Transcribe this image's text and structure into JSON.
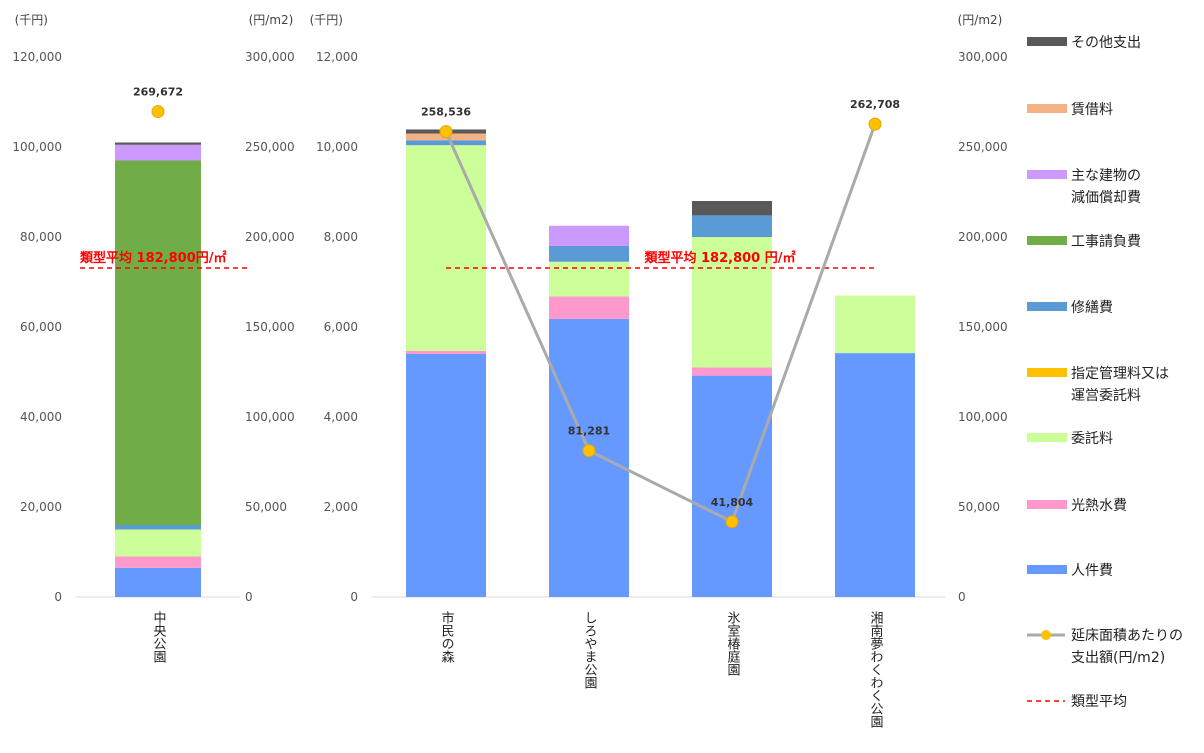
{
  "colors": {
    "sonota": "#595959",
    "chinshaku": "#f4b183",
    "genka": "#cc99ff",
    "kouji": "#70ad47",
    "shuzen": "#5b9bd5",
    "shitei": "#ffc000",
    "itaku": "#ccff99",
    "kounetsu": "#ff99cc",
    "jinken": "#6699ff",
    "line": "#aaaaaa",
    "marker": "#ffc000",
    "average": "#ff0000"
  },
  "legend": {
    "sonota": [
      "その他支出"
    ],
    "chinshaku": [
      "賃借料"
    ],
    "genka": [
      "主な建物の",
      "減価償却費"
    ],
    "kouji": [
      "工事請負費"
    ],
    "shuzen": [
      "修繕費"
    ],
    "shitei": [
      "指定管理料又は",
      "運営委託料"
    ],
    "itaku": [
      "委託料"
    ],
    "kounetsu": [
      "光熱水費"
    ],
    "jinken": [
      "人件費"
    ],
    "line": [
      "延床面積あたりの",
      "支出額(円/m2)"
    ],
    "average": [
      "類型平均"
    ]
  },
  "chart_data": [
    {
      "type": "bar",
      "stacked": true,
      "categories": [
        "中央公園"
      ],
      "y_left_unit": "(千円)",
      "y_right_unit": "(円/m2)",
      "ylim_left": [
        0,
        120000
      ],
      "ylim_right": [
        0,
        300000
      ],
      "left_ticks": [
        "0",
        "20,000",
        "40,000",
        "60,000",
        "80,000",
        "100,000",
        "120,000"
      ],
      "right_ticks": [
        "0",
        "50,000",
        "100,000",
        "150,000",
        "200,000",
        "250,000",
        "300,000"
      ],
      "series": [
        {
          "key": "jinken",
          "values": [
            6500
          ]
        },
        {
          "key": "kounetsu",
          "values": [
            2500
          ]
        },
        {
          "key": "itaku",
          "values": [
            6000
          ]
        },
        {
          "key": "shitei",
          "values": [
            0
          ]
        },
        {
          "key": "shuzen",
          "values": [
            1000
          ]
        },
        {
          "key": "kouji",
          "values": [
            81000
          ]
        },
        {
          "key": "genka",
          "values": [
            3500
          ]
        },
        {
          "key": "chinshaku",
          "values": [
            0
          ]
        },
        {
          "key": "sonota",
          "values": [
            500
          ]
        }
      ],
      "line": {
        "values": [
          269672
        ],
        "labels": [
          "269,672"
        ]
      },
      "average": {
        "value": 182800,
        "label": "類型平均 182,800円/㎡"
      }
    },
    {
      "type": "bar",
      "stacked": true,
      "categories": [
        "市民の森",
        "しろやま公園",
        "氷室椿庭園",
        "湘南夢わくわく公園"
      ],
      "y_left_unit": "(千円)",
      "y_right_unit": "(円/m2)",
      "ylim_left": [
        0,
        12000
      ],
      "ylim_right": [
        0,
        300000
      ],
      "left_ticks": [
        "0",
        "2,000",
        "4,000",
        "6,000",
        "8,000",
        "10,000",
        "12,000"
      ],
      "right_ticks": [
        "0",
        "50,000",
        "100,000",
        "150,000",
        "200,000",
        "250,000",
        "300,000"
      ],
      "series": [
        {
          "key": "jinken",
          "values": [
            5400,
            6180,
            4920,
            5420
          ]
        },
        {
          "key": "kounetsu",
          "values": [
            70,
            500,
            180,
            0
          ]
        },
        {
          "key": "itaku",
          "values": [
            4570,
            770,
            2900,
            1280
          ]
        },
        {
          "key": "shitei",
          "values": [
            0,
            0,
            0,
            0
          ]
        },
        {
          "key": "shuzen",
          "values": [
            110,
            350,
            480,
            0
          ]
        },
        {
          "key": "kouji",
          "values": [
            0,
            0,
            0,
            0
          ]
        },
        {
          "key": "genka",
          "values": [
            0,
            450,
            0,
            0
          ]
        },
        {
          "key": "chinshaku",
          "values": [
            150,
            0,
            0,
            0
          ]
        },
        {
          "key": "sonota",
          "values": [
            90,
            0,
            320,
            0
          ]
        }
      ],
      "line": {
        "values": [
          258536,
          81281,
          41804,
          262708
        ],
        "labels": [
          "258,536",
          "81,281",
          "41,804",
          "262,708"
        ]
      },
      "average": {
        "value": 182800,
        "label": "類型平均 182,800 円/㎡"
      }
    }
  ]
}
